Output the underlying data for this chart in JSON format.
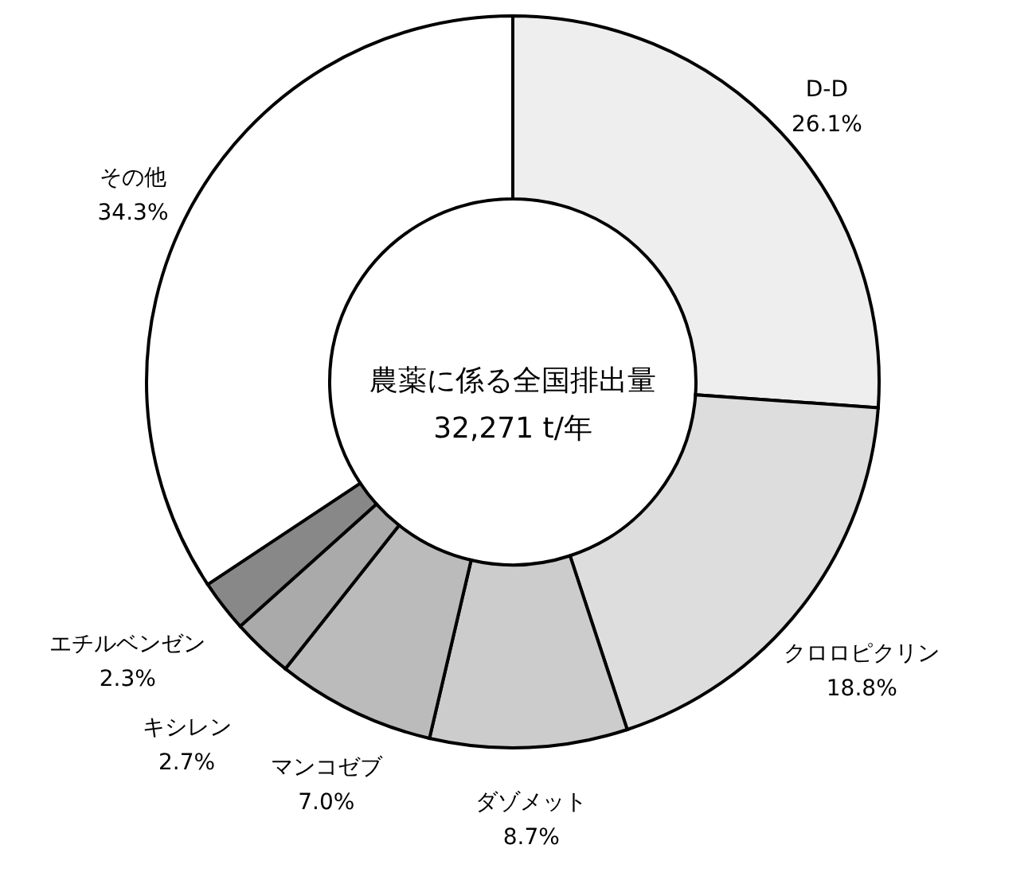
{
  "chart_data": {
    "type": "donut",
    "categories": [
      "D-D",
      "クロロピクリン",
      "ダゾメット",
      "マンコゼブ",
      "キシレン",
      "エチルベンゼン",
      "その他"
    ],
    "values": [
      26.1,
      18.8,
      8.7,
      7.0,
      2.7,
      2.3,
      34.3
    ],
    "value_labels": [
      "26.1%",
      "18.8%",
      "8.7%",
      "7.0%",
      "2.7%",
      "2.3%",
      "34.3%"
    ],
    "colors": [
      "#eeeeee",
      "#dddddd",
      "#cccccc",
      "#bbbbbb",
      "#aaaaaa",
      "#888888",
      "#ffffff"
    ],
    "annotations": [
      "農薬に係る全国排出量",
      "32,271 t/年"
    ]
  }
}
